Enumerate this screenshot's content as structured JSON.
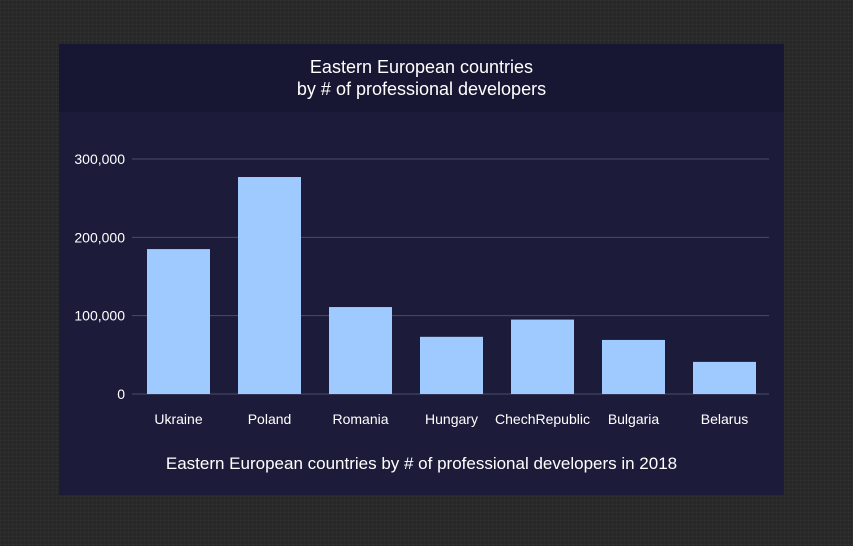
{
  "chart_data": {
    "type": "bar",
    "title_line1": "Eastern European countries",
    "title_line2": "by # of professional developers",
    "caption": "Eastern European countries by # of professional developers in 2018",
    "categories": [
      "Ukraine",
      "Poland",
      "Romania",
      "Hungary",
      "ChechRepublic",
      "Bulgaria",
      "Belarus"
    ],
    "values": [
      185000,
      277000,
      111000,
      73000,
      95000,
      69000,
      41000
    ],
    "ylim": [
      0,
      300000
    ],
    "yticks": [
      0,
      100000,
      200000,
      300000
    ],
    "ytick_labels": [
      "0",
      "100,000",
      "200,000",
      "300,000"
    ],
    "grid": true,
    "colors": {
      "bar": "#9ecaff",
      "grid": "#4a4a6e",
      "text": "#ffffff"
    }
  }
}
